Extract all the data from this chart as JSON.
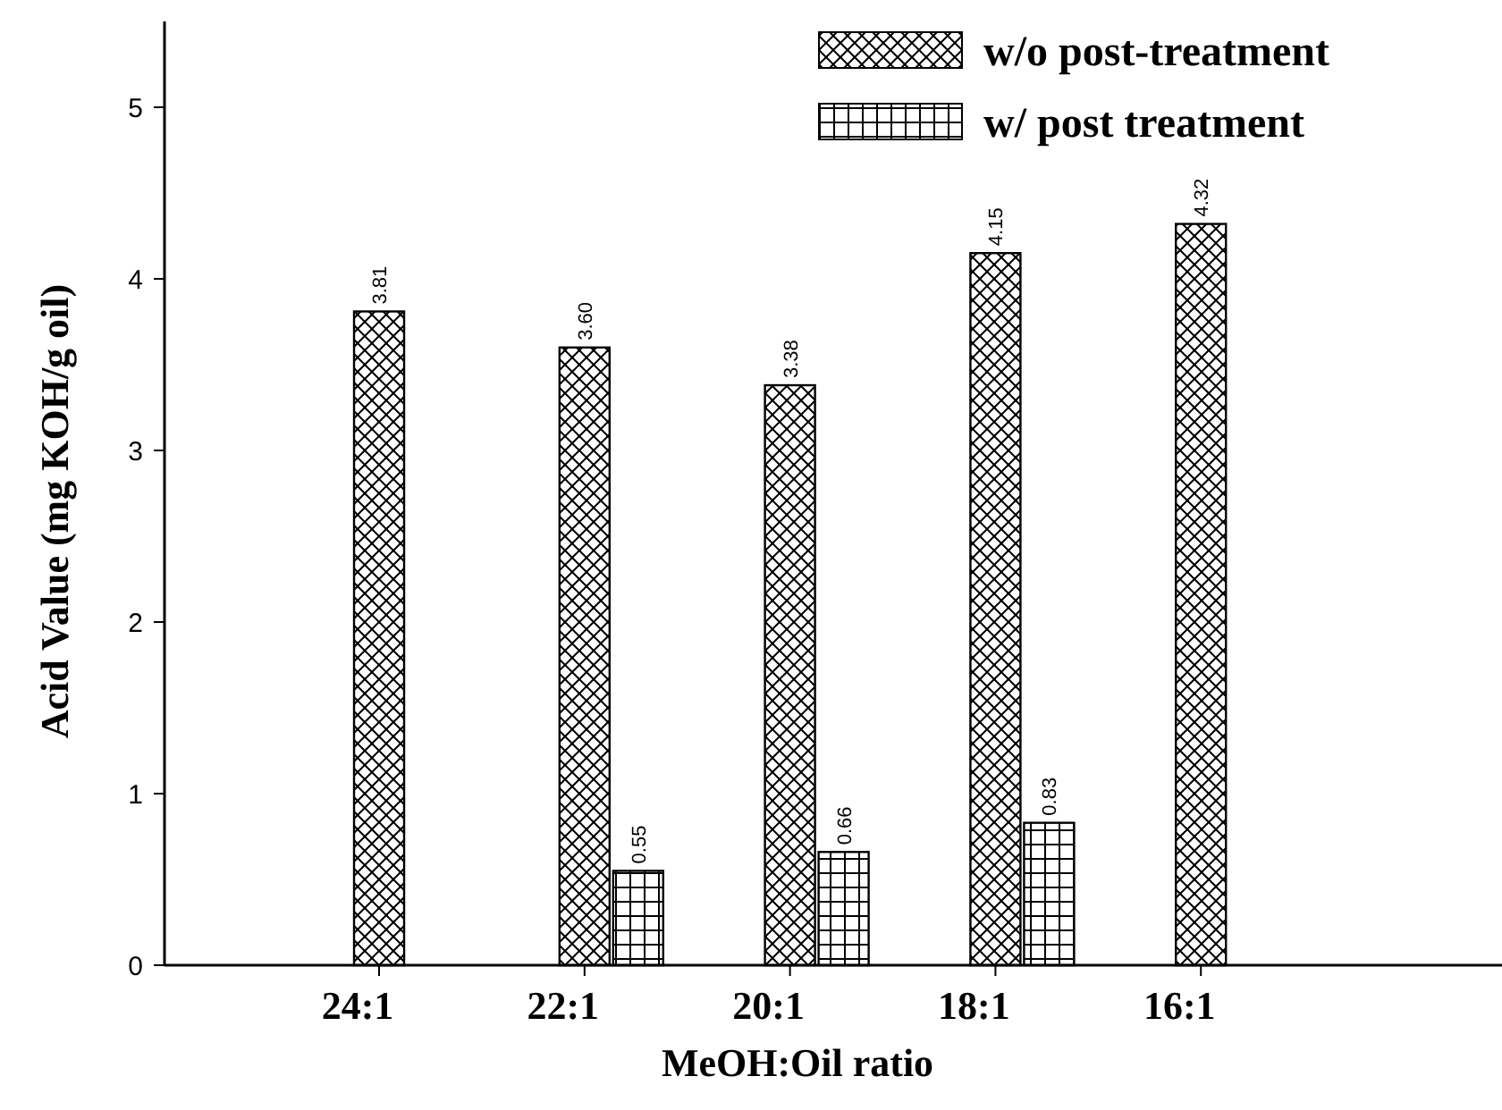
{
  "chart_data": {
    "type": "bar",
    "xlabel": "MeOH:Oil ratio",
    "ylabel": "Acid Value (mg KOH/g oil)",
    "categories": [
      "24:1",
      "22:1",
      "20:1",
      "18:1",
      "16:1"
    ],
    "series": [
      {
        "name": "w/o post-treatment",
        "color": "#000000",
        "values": [
          3.81,
          3.6,
          3.38,
          4.15,
          4.32
        ],
        "value_labels": [
          "3.81",
          "3.60",
          "3.38",
          "4.15",
          "4.32"
        ]
      },
      {
        "name": "w/ post treatment",
        "color": "#000000",
        "values": [
          null,
          0.55,
          0.66,
          0.83,
          null
        ],
        "value_labels": [
          null,
          "0.55",
          "0.66",
          "0.83",
          null
        ]
      }
    ],
    "ylim": [
      0,
      5.5
    ],
    "yticks": [
      0,
      1,
      2,
      3,
      4,
      5
    ],
    "grid": false,
    "legend": "top right"
  }
}
